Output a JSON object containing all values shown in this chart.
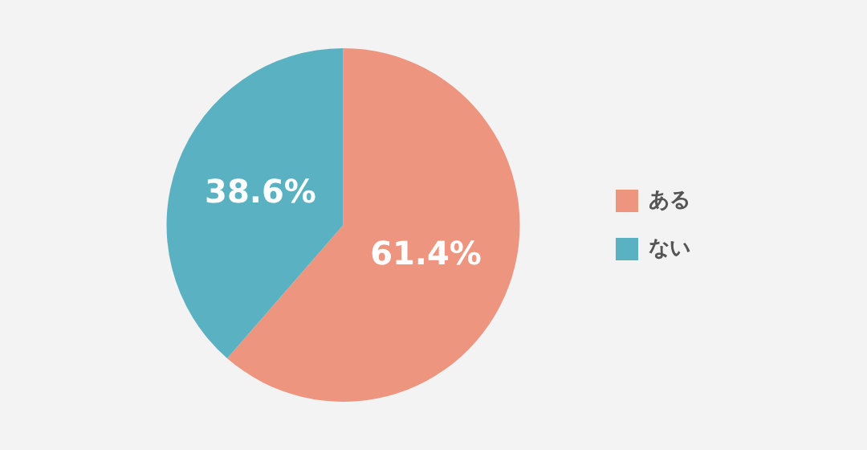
{
  "chart_data": {
    "type": "pie",
    "categories": [
      "ある",
      "ない"
    ],
    "values": [
      61.4,
      38.6
    ],
    "colors": [
      "#ee957f",
      "#5ab1c1"
    ],
    "value_labels": [
      "61.4%",
      "38.6%"
    ],
    "legend": "right"
  }
}
